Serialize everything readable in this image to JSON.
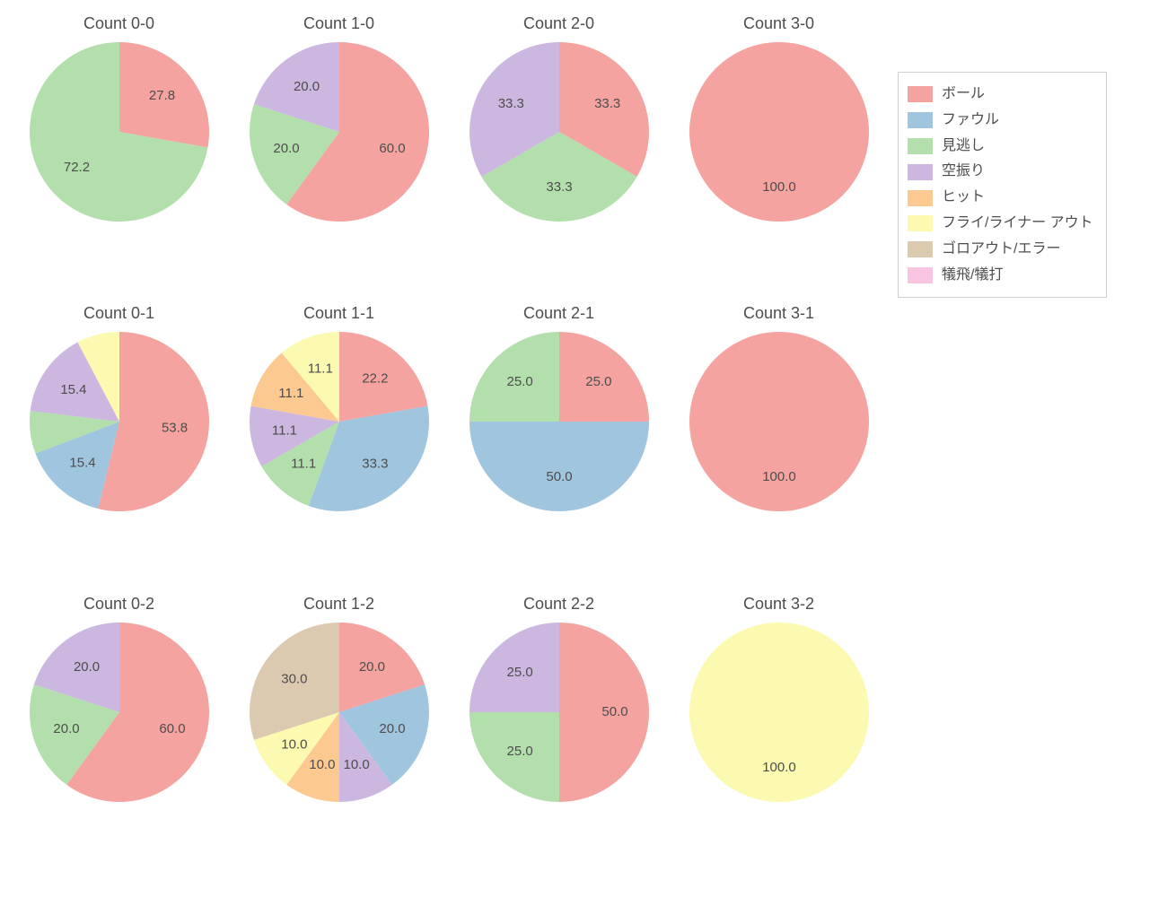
{
  "background_color": "#ffffff",
  "text_color": "#4d4d4d",
  "title_fontsize": 18,
  "label_fontsize": 15,
  "legend_fontsize": 16,
  "pie_radius": 100,
  "pie_label_distance": 0.62,
  "start_angle_deg": 90,
  "direction": "clockwise",
  "categories": [
    {
      "key": "ball",
      "label": "ボール",
      "color": "#f4a3a0"
    },
    {
      "key": "foul",
      "label": "ファウル",
      "color": "#a0c5df"
    },
    {
      "key": "look",
      "label": "見逃し",
      "color": "#b2dfab"
    },
    {
      "key": "swing",
      "label": "空振り",
      "color": "#cbb7e0"
    },
    {
      "key": "hit",
      "label": "ヒット",
      "color": "#fcc990"
    },
    {
      "key": "flyout",
      "label": "フライ/ライナー アウト",
      "color": "#fbfab0"
    },
    {
      "key": "ground",
      "label": "ゴロアウト/エラー",
      "color": "#dccab0"
    },
    {
      "key": "sac",
      "label": "犠飛/犠打",
      "color": "#f8c4df"
    }
  ],
  "panels": [
    {
      "id": "count-0-0",
      "title": "Count 0-0",
      "slices": [
        {
          "cat": "ball",
          "value": 27.8
        },
        {
          "cat": "look",
          "value": 72.2
        }
      ]
    },
    {
      "id": "count-1-0",
      "title": "Count 1-0",
      "slices": [
        {
          "cat": "ball",
          "value": 60.0
        },
        {
          "cat": "look",
          "value": 20.0
        },
        {
          "cat": "swing",
          "value": 20.0
        }
      ]
    },
    {
      "id": "count-2-0",
      "title": "Count 2-0",
      "slices": [
        {
          "cat": "ball",
          "value": 33.3
        },
        {
          "cat": "look",
          "value": 33.3
        },
        {
          "cat": "swing",
          "value": 33.3
        }
      ]
    },
    {
      "id": "count-3-0",
      "title": "Count 3-0",
      "slices": [
        {
          "cat": "ball",
          "value": 100.0
        }
      ]
    },
    {
      "id": "count-0-1",
      "title": "Count 0-1",
      "slices": [
        {
          "cat": "ball",
          "value": 53.8
        },
        {
          "cat": "foul",
          "value": 15.4
        },
        {
          "cat": "look",
          "value": 7.7,
          "hide_label": true
        },
        {
          "cat": "swing",
          "value": 15.4
        },
        {
          "cat": "flyout",
          "value": 7.7,
          "hide_label": true
        }
      ]
    },
    {
      "id": "count-1-1",
      "title": "Count 1-1",
      "slices": [
        {
          "cat": "ball",
          "value": 22.2
        },
        {
          "cat": "foul",
          "value": 33.3
        },
        {
          "cat": "look",
          "value": 11.1
        },
        {
          "cat": "swing",
          "value": 11.1
        },
        {
          "cat": "hit",
          "value": 11.1
        },
        {
          "cat": "flyout",
          "value": 11.1
        }
      ]
    },
    {
      "id": "count-2-1",
      "title": "Count 2-1",
      "slices": [
        {
          "cat": "ball",
          "value": 25.0
        },
        {
          "cat": "foul",
          "value": 50.0
        },
        {
          "cat": "look",
          "value": 25.0
        }
      ]
    },
    {
      "id": "count-3-1",
      "title": "Count 3-1",
      "slices": [
        {
          "cat": "ball",
          "value": 100.0
        }
      ]
    },
    {
      "id": "count-0-2",
      "title": "Count 0-2",
      "slices": [
        {
          "cat": "ball",
          "value": 60.0
        },
        {
          "cat": "look",
          "value": 20.0
        },
        {
          "cat": "swing",
          "value": 20.0
        }
      ]
    },
    {
      "id": "count-1-2",
      "title": "Count 1-2",
      "slices": [
        {
          "cat": "ball",
          "value": 20.0
        },
        {
          "cat": "foul",
          "value": 20.0
        },
        {
          "cat": "swing",
          "value": 10.0
        },
        {
          "cat": "hit",
          "value": 10.0
        },
        {
          "cat": "flyout",
          "value": 10.0
        },
        {
          "cat": "ground",
          "value": 30.0
        }
      ]
    },
    {
      "id": "count-2-2",
      "title": "Count 2-2",
      "slices": [
        {
          "cat": "ball",
          "value": 50.0
        },
        {
          "cat": "look",
          "value": 25.0
        },
        {
          "cat": "swing",
          "value": 25.0
        }
      ]
    },
    {
      "id": "count-3-2",
      "title": "Count 3-2",
      "slices": [
        {
          "cat": "flyout",
          "value": 100.0
        }
      ]
    }
  ]
}
